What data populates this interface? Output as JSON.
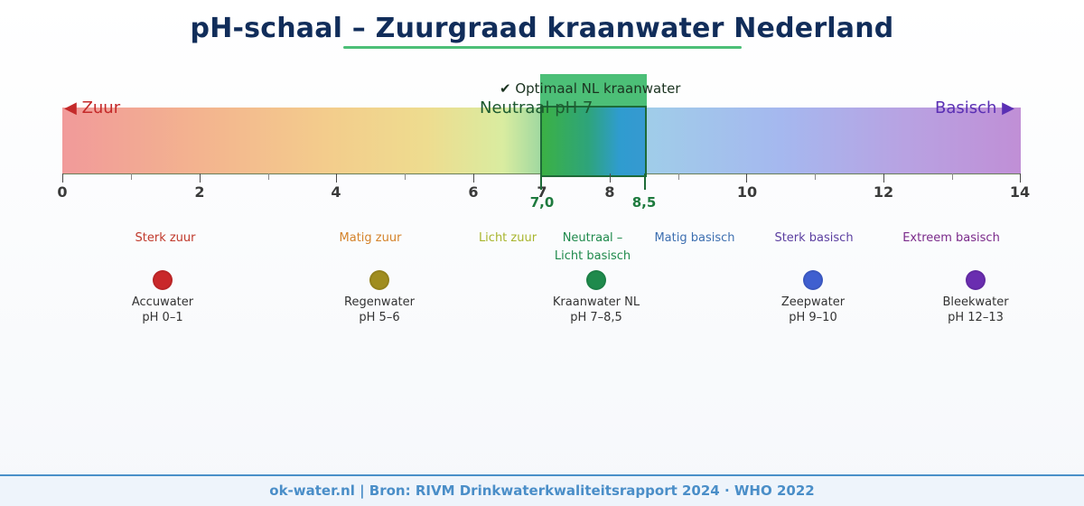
{
  "title": "pH-schaal – Zuurgraad kraanwater Nederland",
  "scale": {
    "left_label": "◀ Zuur",
    "right_label": "Basisch ▶",
    "neutral_label": "Neutraal  pH 7",
    "optimal_label": "✔  Optimaal NL kraanwater",
    "optimal_min_label": "7,0",
    "optimal_max_label": "8,5",
    "ticks": [
      "0",
      "2",
      "4",
      "6",
      "7",
      "8",
      "10",
      "12",
      "14"
    ]
  },
  "zones": [
    {
      "label": "Sterk zuur",
      "color": "#c0392b"
    },
    {
      "label": "Matig zuur",
      "color": "#d4832a"
    },
    {
      "label": "Licht zuur",
      "color": "#a8b52d"
    },
    {
      "label": "Neutraal –\nLicht basisch",
      "color": "#1f8a4c"
    },
    {
      "label": "Matig basisch",
      "color": "#3d6fb0"
    },
    {
      "label": "Sterk basisch",
      "color": "#5b3fa0"
    },
    {
      "label": "Extreem basisch",
      "color": "#7a2a8a"
    }
  ],
  "examples": [
    {
      "name": "Accuwater",
      "range": "pH 0–1",
      "color": "#c9282a"
    },
    {
      "name": "Regenwater",
      "range": "pH 5–6",
      "color": "#a08d1f"
    },
    {
      "name": "Kraanwater NL",
      "range": "pH 7–8,5",
      "color": "#1f8a4c"
    },
    {
      "name": "Zeepwater",
      "range": "pH 9–10",
      "color": "#3f5fd0"
    },
    {
      "name": "Bleekwater",
      "range": "pH 12–13",
      "color": "#6a2db0"
    }
  ],
  "footer": "ok-water.nl  |  Bron: RIVM Drinkwaterkwaliteitsrapport 2024 · WHO 2022"
}
